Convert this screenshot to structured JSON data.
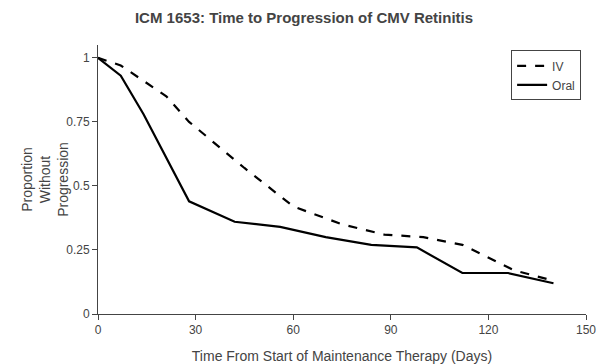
{
  "chart_data": {
    "type": "line",
    "title": "ICM 1653: Time to Progression of CMV Retinitis",
    "x_label": "Time From Start of Maintenance Therapy (Days)",
    "y_label": "Proportion\nWithout\nProgression",
    "xlim": [
      0,
      150
    ],
    "ylim": [
      0,
      1.05
    ],
    "xticks": [
      0,
      30,
      60,
      90,
      120,
      150
    ],
    "yticks": [
      0,
      0.25,
      0.5,
      0.75,
      1
    ],
    "grid": false,
    "legend": "upper right",
    "series": [
      {
        "name": "IV",
        "color": "#000000",
        "line_style": "dashed",
        "x": [
          0,
          7,
          21,
          28,
          45,
          60,
          75,
          88,
          100,
          112,
          128,
          140
        ],
        "values": [
          1.0,
          0.97,
          0.85,
          0.75,
          0.57,
          0.42,
          0.35,
          0.31,
          0.3,
          0.27,
          0.17,
          0.13
        ]
      },
      {
        "name": "Oral",
        "color": "#000000",
        "line_style": "solid",
        "x": [
          0,
          7,
          14,
          28,
          42,
          56,
          70,
          84,
          98,
          112,
          126,
          140
        ],
        "values": [
          1.0,
          0.93,
          0.78,
          0.44,
          0.36,
          0.34,
          0.3,
          0.27,
          0.26,
          0.16,
          0.16,
          0.12
        ]
      }
    ]
  }
}
